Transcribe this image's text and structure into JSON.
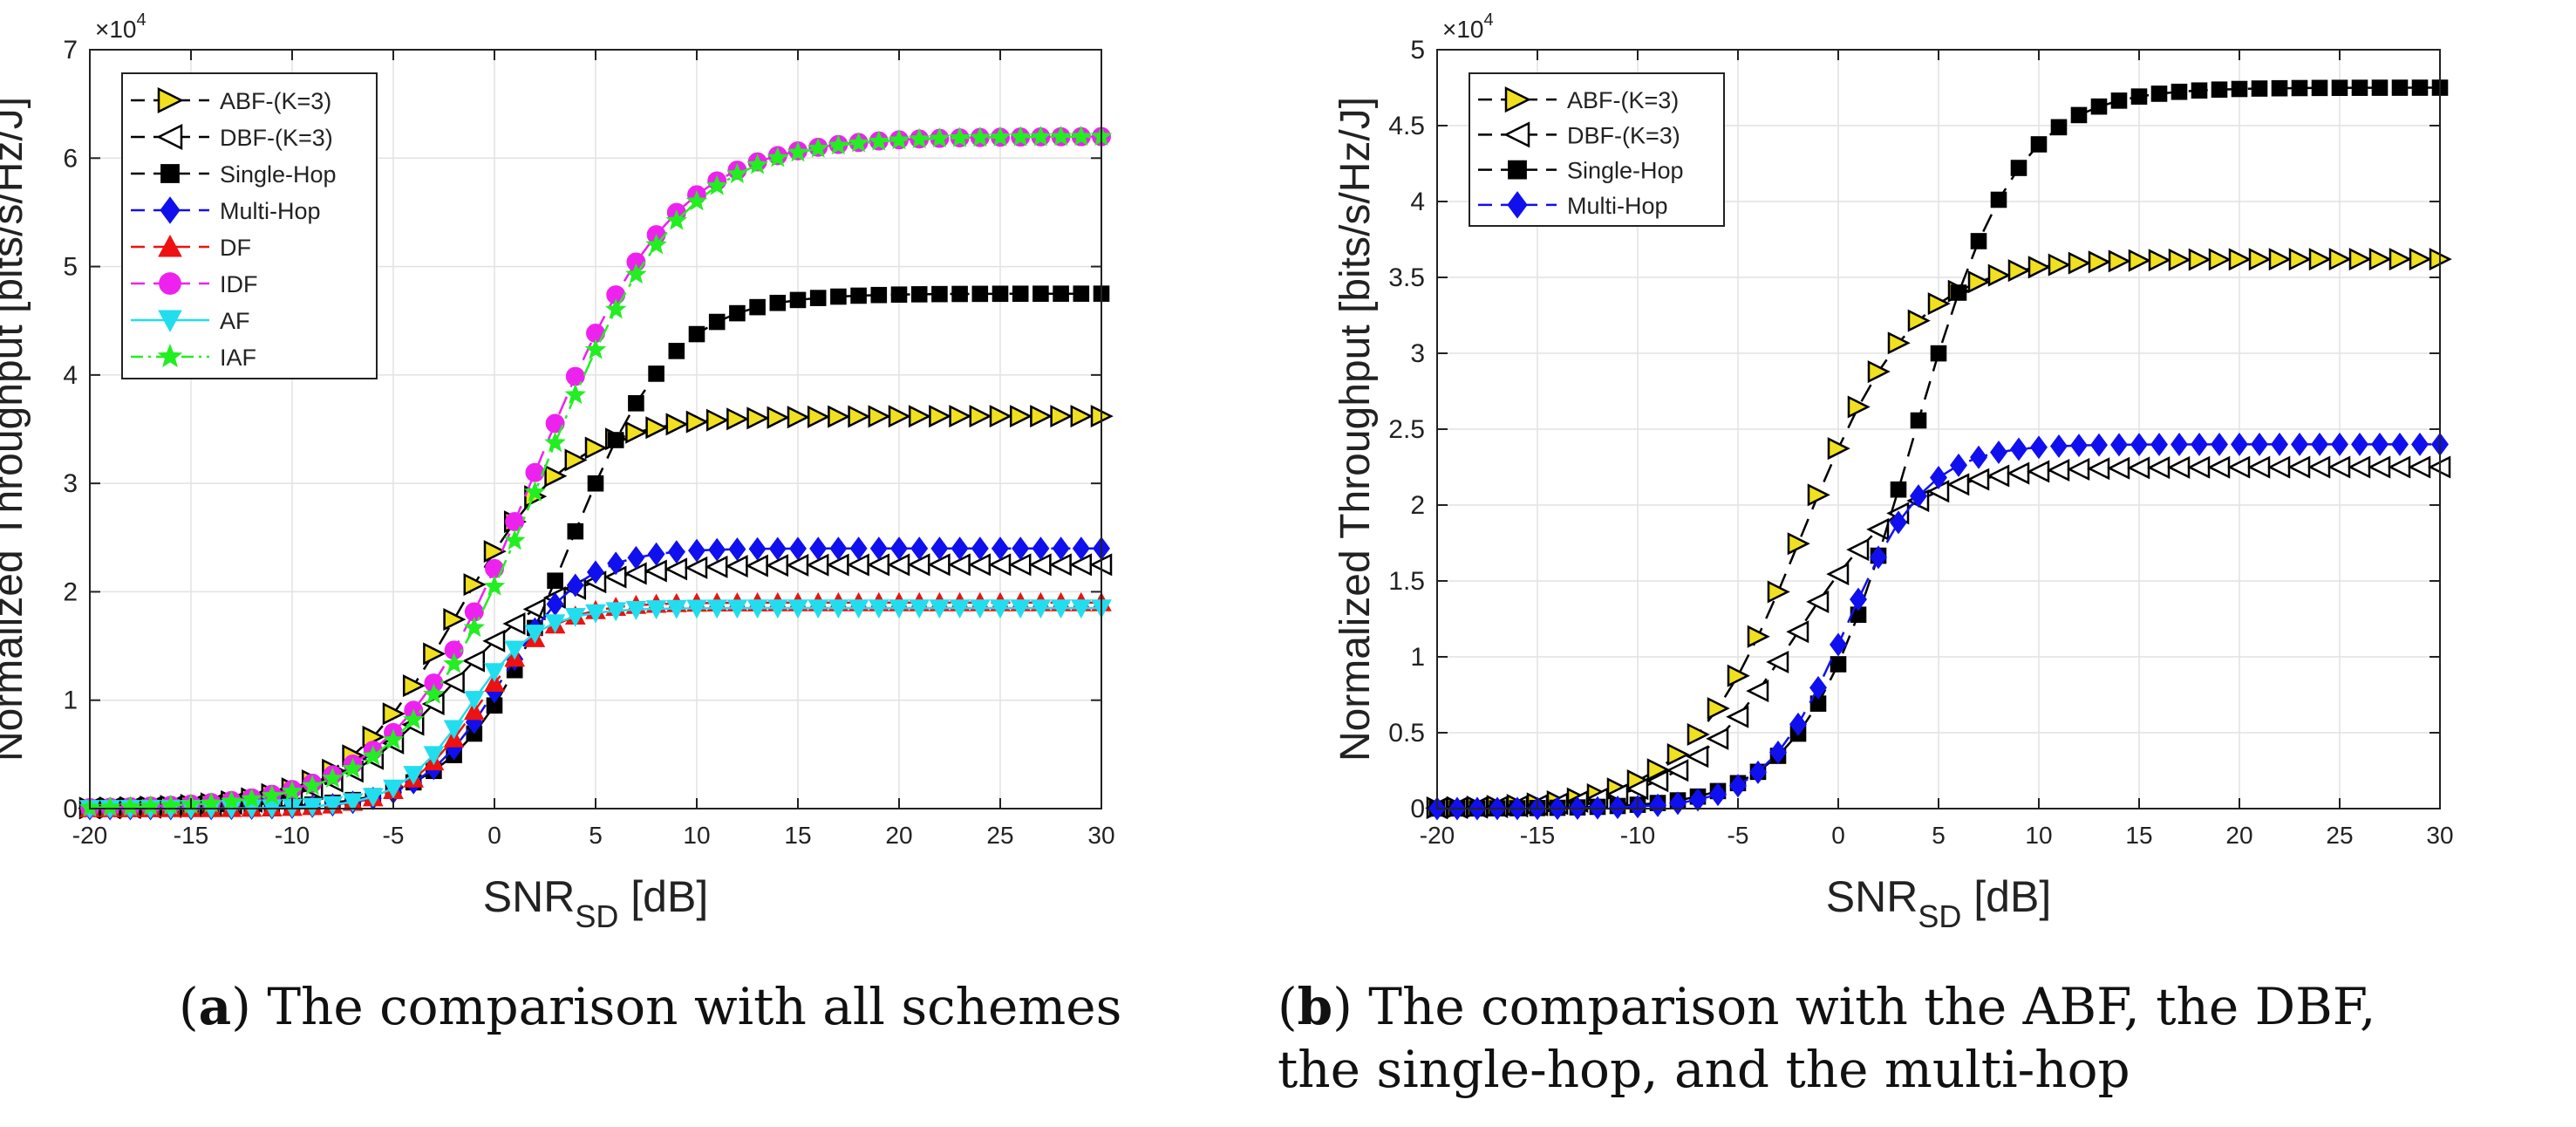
{
  "captions": {
    "a": {
      "letter": "a",
      "text": "The comparison with all schemes"
    },
    "b": {
      "letter": "b",
      "line1": "The comparison with the ABF, the DBF,",
      "line2": "the single-hop, and the multi-hop"
    }
  },
  "chart_data": [
    {
      "id": "a",
      "type": "line",
      "title": "",
      "xlabel": "SNR",
      "xlabel_sub": "SD",
      "xlabel_unit": "[dB]",
      "ylabel": "Normalized Throughput [bits/s/Hz/J]",
      "y_multiplier": "×10",
      "y_multiplier_exp": "4",
      "xlim": [
        -20,
        30
      ],
      "ylim": [
        0,
        7
      ],
      "xticks": [
        -20,
        -15,
        -10,
        -5,
        0,
        5,
        10,
        15,
        20,
        25,
        30
      ],
      "yticks": [
        0,
        1,
        2,
        3,
        4,
        5,
        6,
        7
      ],
      "grid": true,
      "legend_position": "top-left",
      "series": [
        {
          "name": "ABF-(K=3)",
          "marker": "triangle-right",
          "color": "#f0e020",
          "line": "dash",
          "ymax": 3.62,
          "mid": -1.8,
          "scale": 2.8
        },
        {
          "name": "DBF-(K=3)",
          "marker": "triangle-left",
          "color": "#ffffff",
          "line": "dash",
          "ymax": 2.25,
          "mid": -2.2,
          "scale": 2.8
        },
        {
          "name": "Single-Hop",
          "marker": "square",
          "color": "#000000",
          "line": "dash",
          "ymax": 4.75,
          "mid": 3.6,
          "scale": 2.6
        },
        {
          "name": "Multi-Hop",
          "marker": "diamond",
          "color": "#1010ee",
          "line": "dash",
          "ymax": 2.4,
          "mid": 0.4,
          "scale": 2.0
        },
        {
          "name": "DF",
          "marker": "triangle-up",
          "color": "#ee1111",
          "line": "dash",
          "ymax": 1.9,
          "mid": -0.8,
          "scale": 1.8
        },
        {
          "name": "IDF",
          "marker": "circle",
          "color": "#ee22ee",
          "line": "dash",
          "ymax": 6.2,
          "mid": 2.0,
          "scale": 3.4
        },
        {
          "name": "AF",
          "marker": "triangle-down",
          "color": "#22ddee",
          "line": "solid",
          "ymax": 1.85,
          "mid": -1.3,
          "scale": 1.7
        },
        {
          "name": "IAF",
          "marker": "star",
          "color": "#22ee22",
          "line": "dashdot",
          "ymax": 6.2,
          "mid": 2.4,
          "scale": 3.4
        }
      ]
    },
    {
      "id": "b",
      "type": "line",
      "title": "",
      "xlabel": "SNR",
      "xlabel_sub": "SD",
      "xlabel_unit": "[dB]",
      "ylabel": "Normalized Throughput [bits/s/Hz/J]",
      "y_multiplier": "×10",
      "y_multiplier_exp": "4",
      "xlim": [
        -20,
        30
      ],
      "ylim": [
        0,
        5
      ],
      "xticks": [
        -20,
        -15,
        -10,
        -5,
        0,
        5,
        10,
        15,
        20,
        25,
        30
      ],
      "yticks": [
        0,
        0.5,
        1,
        1.5,
        2,
        2.5,
        3,
        3.5,
        4,
        4.5,
        5
      ],
      "ytick_labels": [
        "0",
        "0.5",
        "1",
        "1.5",
        "2",
        "2.5",
        "3",
        "3.5",
        "4",
        "4.5",
        "5"
      ],
      "grid": true,
      "legend_position": "top-left",
      "series": [
        {
          "name": "ABF-(K=3)",
          "marker": "triangle-right",
          "color": "#f0e020",
          "line": "dash",
          "ymax": 3.62,
          "mid": -1.8,
          "scale": 2.8
        },
        {
          "name": "DBF-(K=3)",
          "marker": "triangle-left",
          "color": "#ffffff",
          "line": "dash",
          "ymax": 2.25,
          "mid": -2.2,
          "scale": 2.8
        },
        {
          "name": "Single-Hop",
          "marker": "square",
          "color": "#000000",
          "line": "dash",
          "ymax": 4.75,
          "mid": 3.6,
          "scale": 2.6
        },
        {
          "name": "Multi-Hop",
          "marker": "diamond",
          "color": "#1010ee",
          "line": "dash",
          "ymax": 2.4,
          "mid": 0.4,
          "scale": 2.0
        }
      ]
    }
  ]
}
